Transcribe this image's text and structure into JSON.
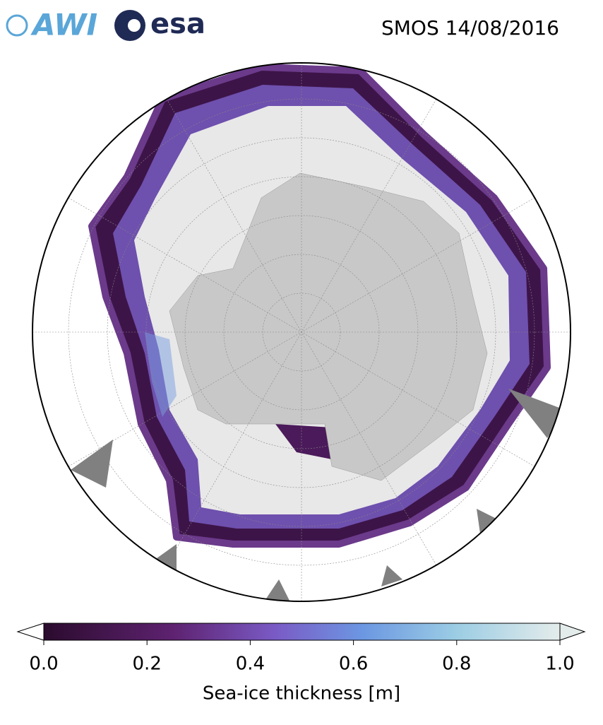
{
  "header": {
    "awi_logo": "AWI",
    "esa_logo": "esa",
    "title": "SMOS 14/08/2016"
  },
  "colorbar": {
    "label": "Sea-ice thickness [m]",
    "lim": [
      0,
      1
    ],
    "ticks": [
      {
        "value": 0,
        "label": "0.0"
      },
      {
        "value": 0.2,
        "label": "0.2"
      },
      {
        "value": 0.4,
        "label": "0.4"
      },
      {
        "value": 0.6,
        "label": "0.6"
      },
      {
        "value": 0.8,
        "label": "0.8"
      },
      {
        "value": 1,
        "label": "1.0"
      }
    ]
  }
}
